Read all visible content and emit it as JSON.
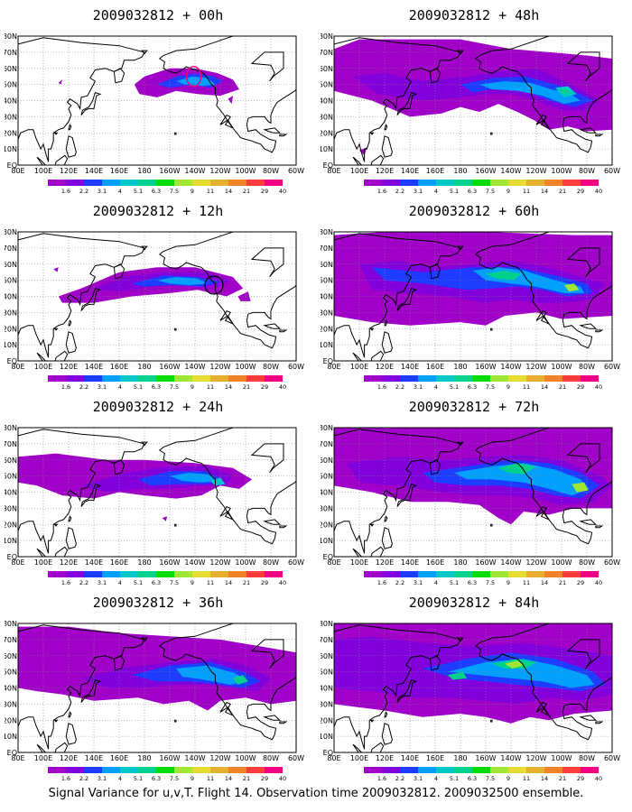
{
  "panels": [
    {
      "title": "2009032812 + 00h",
      "level": 0
    },
    {
      "title": "2009032812 + 48h",
      "level": 4
    },
    {
      "title": "2009032812 + 12h",
      "level": 1
    },
    {
      "title": "2009032812 + 60h",
      "level": 5
    },
    {
      "title": "2009032812 + 24h",
      "level": 2
    },
    {
      "title": "2009032812 + 72h",
      "level": 6
    },
    {
      "title": "2009032812 + 36h",
      "level": 3
    },
    {
      "title": "2009032812 + 84h",
      "level": 7
    }
  ],
  "lat_labels": [
    "80N",
    "70N",
    "60N",
    "50N",
    "40N",
    "30N",
    "20N",
    "10N",
    "EQ"
  ],
  "lon_labels": [
    "80E",
    "100E",
    "120E",
    "140E",
    "160E",
    "180",
    "160W",
    "140W",
    "120W",
    "100W",
    "80W",
    "60W"
  ],
  "legend": {
    "labels": [
      "1.6",
      "2.2",
      "3.1",
      "4",
      "5.1",
      "6.3",
      "7.5",
      "9",
      "11",
      "14",
      "21",
      "29",
      "40"
    ],
    "colors": [
      "#a000c8",
      "#8200dc",
      "#1e3cff",
      "#00a0ff",
      "#00c8c8",
      "#00d28c",
      "#00dc00",
      "#a0e632",
      "#e6dc32",
      "#e6af2d",
      "#f08228",
      "#fa3c3c",
      "#f00082"
    ]
  },
  "caption": "Signal Variance for u,v,T. Flight 14. Observation time 2009032812. 2009032500 ensemble.",
  "colors": {
    "coast": "#000000",
    "grid": "#888888",
    "ring_00h": "#f00082",
    "ring_12h": "#000000"
  }
}
